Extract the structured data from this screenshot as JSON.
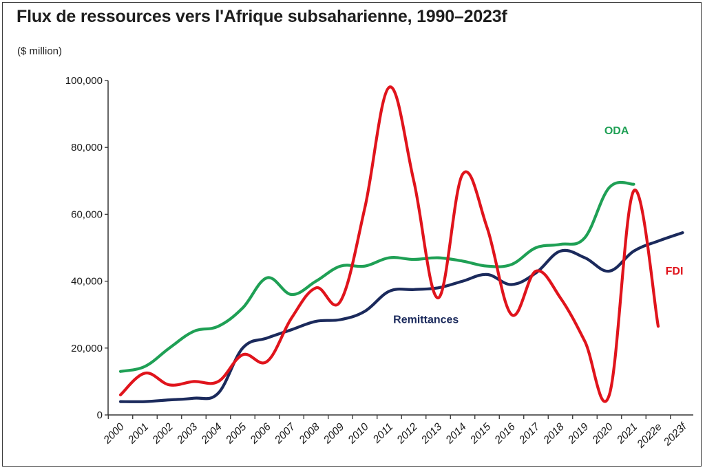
{
  "title": "Flux de ressources vers l'Afrique subsaharienne, 1990–2023f",
  "unit_label": "($ million)",
  "chart_data": {
    "type": "line",
    "title": "Flux de ressources vers l'Afrique subsaharienne, 1990–2023f",
    "ylabel": "($ million)",
    "xlabel": "",
    "x": [
      "2000",
      "2001",
      "2002",
      "2003",
      "2004",
      "2005",
      "2006",
      "2007",
      "2008",
      "2009",
      "2010",
      "2011",
      "2012",
      "2013",
      "2014",
      "2015",
      "2016",
      "2017",
      "2018",
      "2019",
      "2020",
      "2021",
      "2022e",
      "2023f"
    ],
    "ylim": [
      0,
      100000
    ],
    "yticks": [
      0,
      20000,
      40000,
      60000,
      80000,
      100000
    ],
    "ytick_labels": [
      "0",
      "20,000",
      "40,000",
      "60,000",
      "80,000",
      "100,000"
    ],
    "grid": false,
    "legend": "inline labels",
    "series": [
      {
        "name": "ODA",
        "color": "#1fa055",
        "values": [
          13000,
          14500,
          20000,
          25000,
          26500,
          32000,
          41000,
          36000,
          40000,
          44500,
          44500,
          47000,
          46500,
          47000,
          46000,
          44500,
          45000,
          50000,
          51000,
          53000,
          68000,
          69000,
          null,
          null
        ]
      },
      {
        "name": "FDI",
        "color": "#e0141c",
        "values": [
          6000,
          12500,
          9000,
          10000,
          10000,
          18000,
          16000,
          29000,
          38000,
          34000,
          62000,
          98000,
          70000,
          35000,
          72000,
          56000,
          30000,
          43000,
          35000,
          22000,
          6000,
          67000,
          26500,
          null
        ]
      },
      {
        "name": "Remittances",
        "color": "#1b2a5c",
        "values": [
          4000,
          4000,
          4500,
          5000,
          6500,
          20000,
          23000,
          25500,
          28000,
          28500,
          31000,
          37000,
          37500,
          38000,
          40000,
          42000,
          39000,
          42500,
          49000,
          47000,
          43000,
          49000,
          52000,
          54500
        ]
      }
    ]
  }
}
